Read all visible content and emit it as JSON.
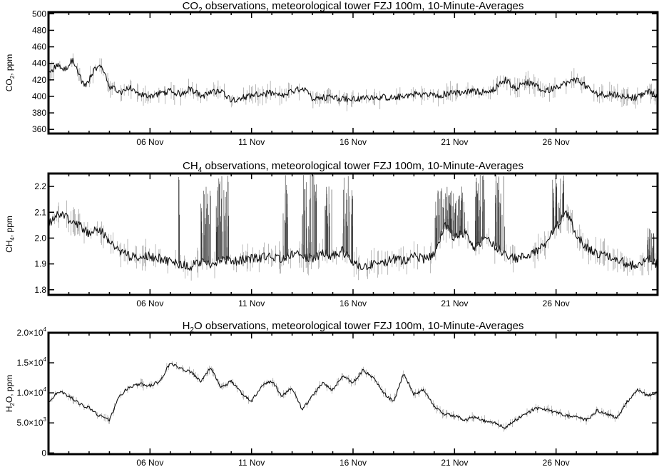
{
  "chart_data": [
    {
      "type": "line",
      "title_parts": {
        "pre": "CO",
        "sub": "2",
        "post": " observations, meteorological tower FZJ 100m, 10-Minute-Averages"
      },
      "ylabel_parts": {
        "pre": "CO",
        "sub": "2",
        "post": ", ppm"
      },
      "xlabel": "",
      "xlim": [
        1.0,
        31.0
      ],
      "ylim": [
        355,
        502
      ],
      "yticks": [
        {
          "value": 360,
          "label": "360"
        },
        {
          "value": 380,
          "label": "380"
        },
        {
          "value": 400,
          "label": "400"
        },
        {
          "value": 420,
          "label": "420"
        },
        {
          "value": 440,
          "label": "440"
        },
        {
          "value": 460,
          "label": "460"
        },
        {
          "value": 480,
          "label": "480"
        },
        {
          "value": 500,
          "label": "500"
        }
      ],
      "xticks": [
        {
          "value": 6,
          "label": "06 Nov"
        },
        {
          "value": 11,
          "label": "11 Nov"
        },
        {
          "value": 16,
          "label": "16 Nov"
        },
        {
          "value": 21,
          "label": "21 Nov"
        },
        {
          "value": 26,
          "label": "26 Nov"
        }
      ],
      "noise": 4,
      "series": [
        {
          "x": [
            1.0,
            1.4,
            1.8,
            2.2,
            2.5,
            2.8,
            3.2,
            3.6,
            4.0,
            4.5,
            5.0,
            5.5,
            6.0,
            6.5,
            7.0,
            7.5,
            8.0,
            8.5,
            9.0,
            9.5,
            10.0,
            11.0,
            12.0,
            12.5,
            13.0,
            13.5,
            14.0,
            15.0,
            16.0,
            17.0,
            18.0,
            19.0,
            20.0,
            21.0,
            22.0,
            22.5,
            23.0,
            23.5,
            24.0,
            24.5,
            25.0,
            25.5,
            26.0,
            27.0,
            28.0,
            29.0,
            29.5,
            30.0,
            30.5,
            31.0
          ],
          "y": [
            425,
            438,
            432,
            445,
            425,
            412,
            430,
            438,
            412,
            405,
            410,
            402,
            400,
            404,
            406,
            403,
            410,
            400,
            404,
            407,
            396,
            401,
            404,
            400,
            406,
            410,
            398,
            399,
            396,
            400,
            398,
            403,
            401,
            404,
            406,
            405,
            410,
            420,
            410,
            418,
            412,
            406,
            412,
            420,
            403,
            402,
            400,
            398,
            406,
            400
          ]
        }
      ]
    },
    {
      "type": "line",
      "title_parts": {
        "pre": "CH",
        "sub": "4",
        "post": " observations, meteorological tower FZJ 100m, 10-Minute-Averages"
      },
      "ylabel_parts": {
        "pre": "CH",
        "sub": "4",
        "post": ", ppm"
      },
      "xlabel": "",
      "xlim": [
        1.0,
        31.0
      ],
      "ylim": [
        1.78,
        2.25
      ],
      "yticks": [
        {
          "value": 1.8,
          "label": "1.8"
        },
        {
          "value": 1.9,
          "label": "1.9"
        },
        {
          "value": 2.0,
          "label": "2.0"
        },
        {
          "value": 2.1,
          "label": "2.1"
        },
        {
          "value": 2.2,
          "label": "2.2"
        }
      ],
      "xticks": [
        {
          "value": 6,
          "label": "06 Nov"
        },
        {
          "value": 11,
          "label": "11 Nov"
        },
        {
          "value": 16,
          "label": "16 Nov"
        },
        {
          "value": 21,
          "label": "21 Nov"
        },
        {
          "value": 26,
          "label": "26 Nov"
        }
      ],
      "noise": 0.018,
      "spike_windows": [
        [
          7.4,
          7.5,
          2.25
        ],
        [
          8.5,
          9.0,
          2.2
        ],
        [
          9.2,
          9.9,
          2.25
        ],
        [
          12.5,
          12.8,
          2.25
        ],
        [
          13.5,
          14.2,
          2.25
        ],
        [
          14.6,
          15.0,
          2.2
        ],
        [
          15.5,
          16.0,
          2.25
        ],
        [
          20.0,
          21.5,
          2.2
        ],
        [
          22.0,
          22.5,
          2.25
        ],
        [
          23.0,
          23.5,
          2.25
        ],
        [
          25.8,
          26.4,
          2.25
        ],
        [
          30.5,
          30.9,
          2.05
        ]
      ],
      "series": [
        {
          "x": [
            1.0,
            1.3,
            1.6,
            2.0,
            2.5,
            3.0,
            3.5,
            4.0,
            4.5,
            5.0,
            5.5,
            6.0,
            6.5,
            7.0,
            7.5,
            8.0,
            8.5,
            9.0,
            9.5,
            10.0,
            11.0,
            12.0,
            12.5,
            13.0,
            13.5,
            14.0,
            14.5,
            15.0,
            15.5,
            16.0,
            16.5,
            17.0,
            17.5,
            18.0,
            18.5,
            19.0,
            19.5,
            20.0,
            20.5,
            21.0,
            21.5,
            22.0,
            22.5,
            23.0,
            23.5,
            24.0,
            24.5,
            25.0,
            25.5,
            26.0,
            26.5,
            27.0,
            27.5,
            28.0,
            28.5,
            29.0,
            29.5,
            30.0,
            30.5,
            31.0
          ],
          "y": [
            2.05,
            2.08,
            2.1,
            2.07,
            2.05,
            2.02,
            2.04,
            1.98,
            1.95,
            1.93,
            1.92,
            1.93,
            1.92,
            1.91,
            1.9,
            1.89,
            1.91,
            1.9,
            1.92,
            1.91,
            1.92,
            1.93,
            1.92,
            1.94,
            1.93,
            1.92,
            1.94,
            1.93,
            1.95,
            1.9,
            1.89,
            1.9,
            1.9,
            1.92,
            1.91,
            1.93,
            1.92,
            1.94,
            2.05,
            2.0,
            2.02,
            1.96,
            2.0,
            1.97,
            1.94,
            1.92,
            1.93,
            1.95,
            1.98,
            2.04,
            2.1,
            2.02,
            1.96,
            1.94,
            1.93,
            1.92,
            1.9,
            1.89,
            1.92,
            1.9
          ]
        }
      ]
    },
    {
      "type": "line",
      "title_parts": {
        "pre": "H",
        "sub": "2",
        "post": "O observations, meteorological tower FZJ 100m, 10-Minute-Averages"
      },
      "ylabel_parts": {
        "pre": "H",
        "sub": "2",
        "post": "O, ppm"
      },
      "xlabel": "",
      "xlim": [
        1.0,
        31.0
      ],
      "ylim": [
        -200,
        20000
      ],
      "yticks": [
        {
          "value": 0,
          "label": "0",
          "mant": "",
          "exp": ""
        },
        {
          "value": 5000,
          "label": "",
          "mant": "5.0×10",
          "exp": "3"
        },
        {
          "value": 10000,
          "label": "",
          "mant": "1.0×10",
          "exp": "4"
        },
        {
          "value": 15000,
          "label": "",
          "mant": "1.5×10",
          "exp": "4"
        },
        {
          "value": 20000,
          "label": "",
          "mant": "2.0×10",
          "exp": "4"
        }
      ],
      "xticks": [
        {
          "value": 6,
          "label": "06 Nov"
        },
        {
          "value": 11,
          "label": "11 Nov"
        },
        {
          "value": 16,
          "label": "16 Nov"
        },
        {
          "value": 21,
          "label": "21 Nov"
        },
        {
          "value": 26,
          "label": "26 Nov"
        }
      ],
      "noise": 250,
      "series": [
        {
          "x": [
            1.0,
            1.5,
            2.0,
            2.5,
            3.0,
            3.5,
            4.0,
            4.5,
            5.0,
            5.5,
            6.0,
            6.5,
            7.0,
            7.5,
            8.0,
            8.5,
            9.0,
            9.5,
            10.0,
            10.5,
            11.0,
            11.5,
            12.0,
            12.5,
            13.0,
            13.5,
            14.0,
            14.5,
            15.0,
            15.5,
            16.0,
            16.5,
            17.0,
            17.5,
            18.0,
            18.5,
            19.0,
            19.5,
            20.0,
            20.5,
            21.0,
            21.5,
            22.0,
            22.5,
            23.0,
            23.5,
            24.0,
            24.5,
            25.0,
            25.5,
            26.0,
            26.5,
            27.0,
            27.5,
            28.0,
            28.5,
            29.0,
            29.5,
            30.0,
            30.5,
            31.0
          ],
          "y": [
            8500,
            10300,
            9500,
            8200,
            7500,
            6200,
            5500,
            9500,
            11000,
            11500,
            11200,
            12000,
            15000,
            14000,
            13500,
            12000,
            14200,
            10800,
            12000,
            10000,
            8600,
            11200,
            12000,
            9500,
            10800,
            7200,
            9500,
            11600,
            10500,
            12800,
            11700,
            13800,
            12500,
            10000,
            8500,
            13200,
            9800,
            10500,
            7600,
            6500,
            6200,
            5500,
            6000,
            5300,
            5000,
            4200,
            5500,
            6500,
            7400,
            7200,
            6800,
            6200,
            6000,
            5500,
            7000,
            6500,
            5800,
            8500,
            10500,
            9500,
            10000
          ]
        }
      ]
    }
  ]
}
